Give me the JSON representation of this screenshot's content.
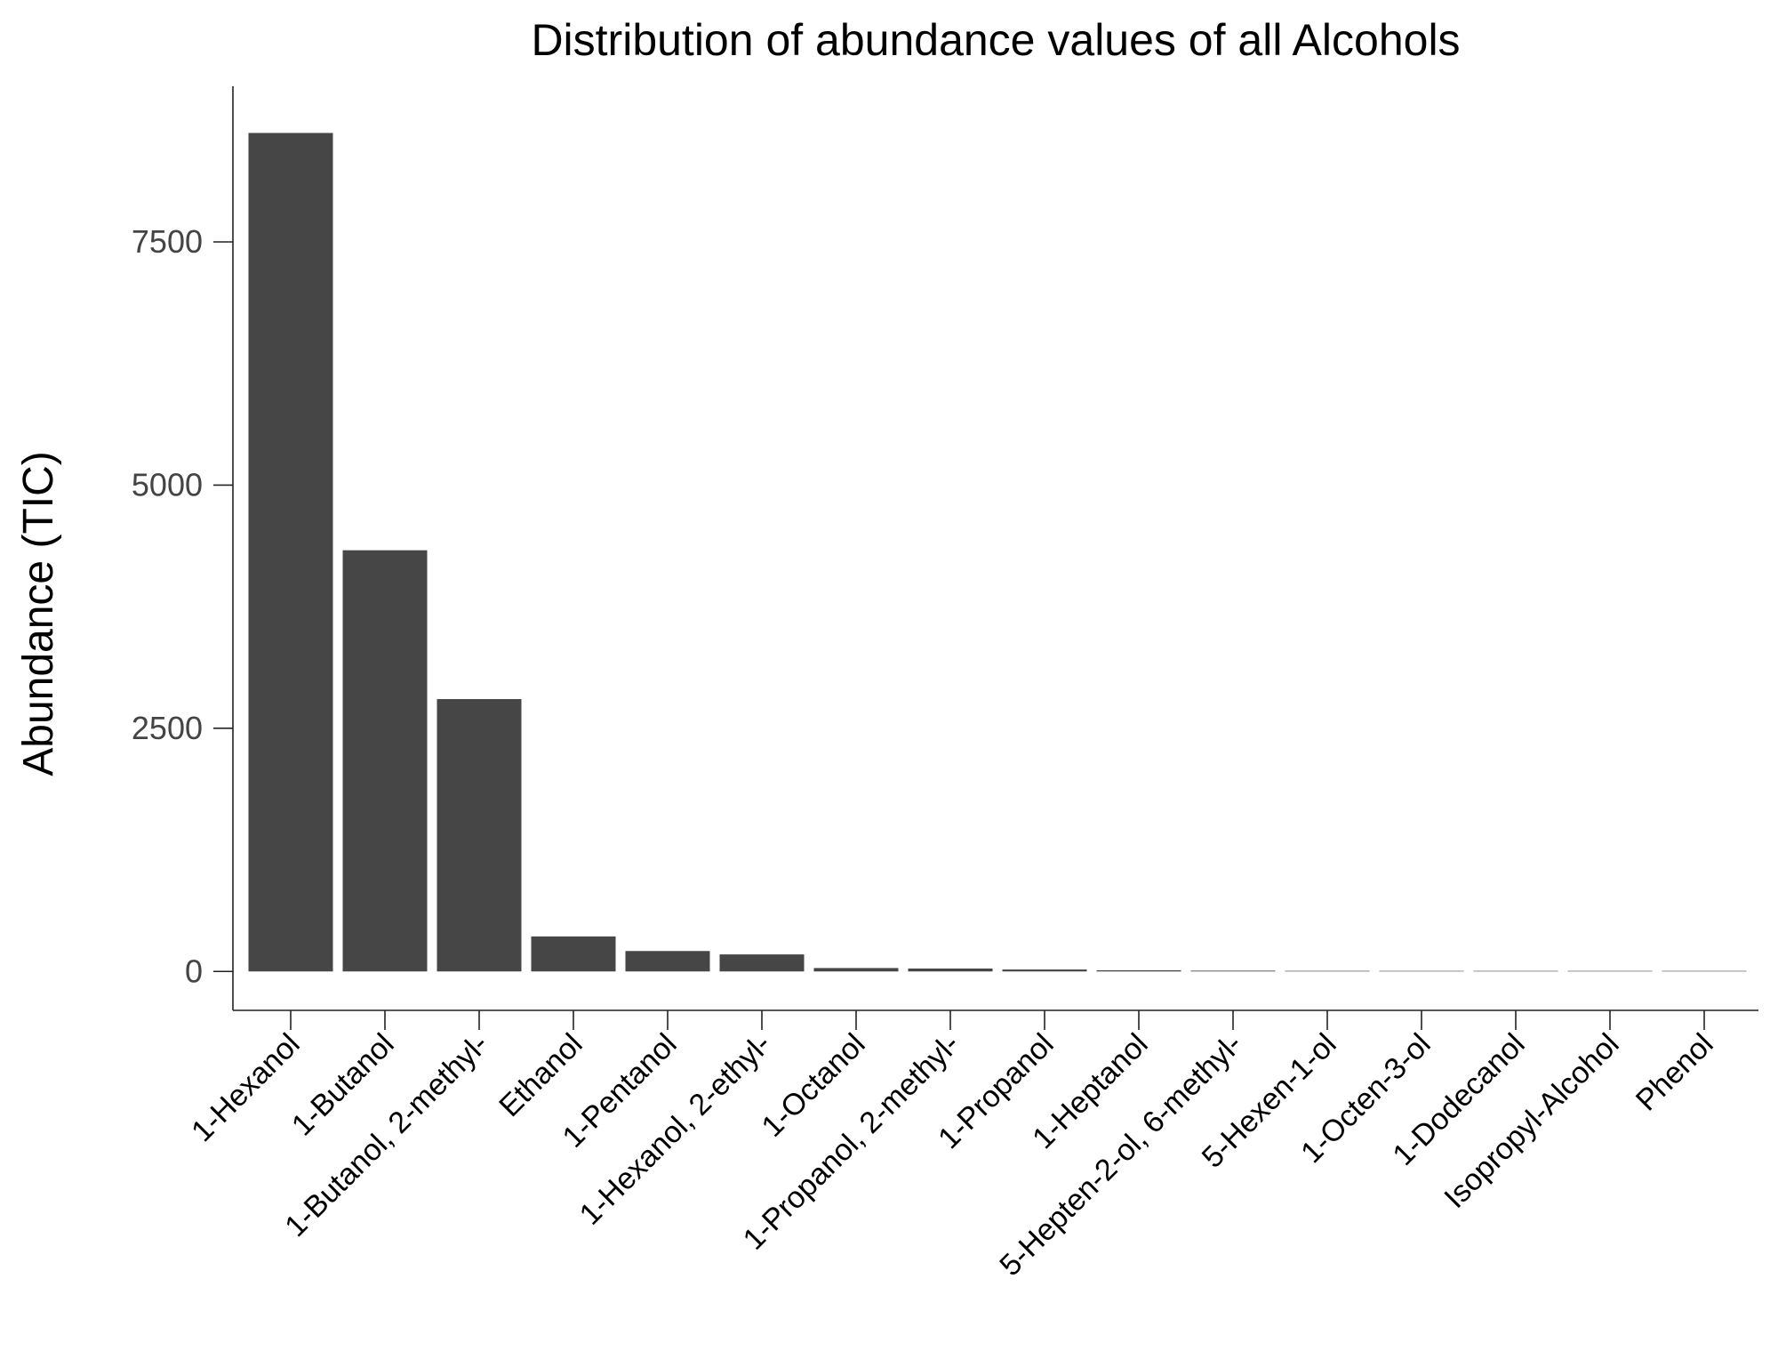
{
  "chart_data": {
    "type": "bar",
    "title": "Distribution of abundance values of all Alcohols",
    "xlabel": "",
    "ylabel": "Abundance (TIC)",
    "categories": [
      "1-Hexanol",
      "1-Butanol",
      "1-Butanol, 2-methyl-",
      "Ethanol",
      "1-Pentanol",
      "1-Hexanol, 2-ethyl-",
      "1-Octanol",
      "1-Propanol, 2-methyl-",
      "1-Propanol",
      "1-Heptanol",
      "5-Hepten-2-ol, 6-methyl-",
      "5-Hexen-1-ol",
      "1-Octen-3-ol",
      "1-Dodecanol",
      "Isopropyl-Alcohol",
      "Phenol"
    ],
    "values": [
      8620,
      4330,
      2800,
      360,
      210,
      175,
      35,
      30,
      20,
      12,
      8,
      6,
      4,
      3,
      2,
      1
    ],
    "yticks": [
      0,
      2500,
      5000,
      7500
    ],
    "ylim": [
      -400,
      9100
    ],
    "grid": false,
    "bar_color": "#464646"
  }
}
